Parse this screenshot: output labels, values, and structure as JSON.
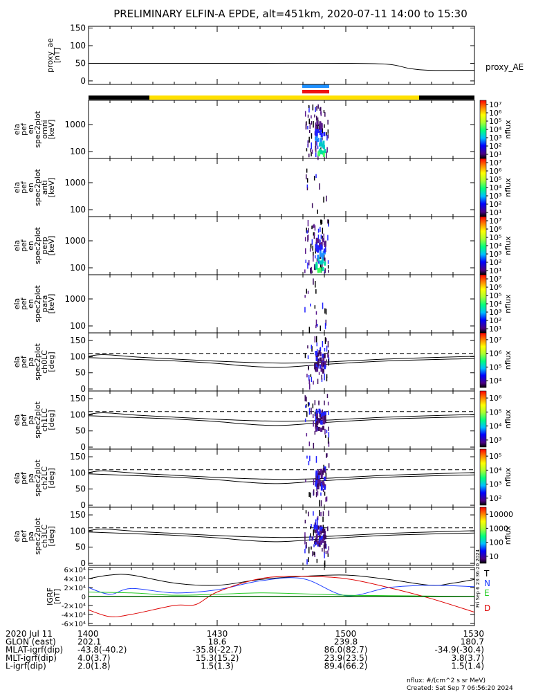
{
  "title": "PRELIMINARY ELFIN-A EPDE, alt=451km, 2020-07-11 14:00 to 15:30",
  "chart_data": [
    {
      "type": "line",
      "ylabel": [
        "proxy_ae",
        "[nT]"
      ],
      "yticks": [
        "0",
        "50",
        "100",
        "150"
      ],
      "ylim": [
        -10,
        155
      ],
      "series": [
        {
          "name": "proxy_AE",
          "x": [
            0,
            10,
            20,
            40,
            60,
            70,
            75,
            80,
            90
          ],
          "y": [
            50,
            50,
            50,
            50,
            50,
            47,
            35,
            30,
            30
          ]
        }
      ]
    },
    {
      "type": "heatmap",
      "ylabel": [
        "ela",
        "pef",
        "en",
        "spec2plot",
        "omni",
        "[keV]"
      ],
      "yticks": [
        "100",
        "1000"
      ],
      "colorbar": {
        "label": "nflux",
        "ticks": [
          "10¹",
          "10²",
          "10³",
          "10⁴",
          "10⁵",
          "10⁶",
          "10⁷"
        ]
      }
    },
    {
      "type": "heatmap",
      "ylabel": [
        "ela",
        "pef",
        "en",
        "spec2plot",
        "anti",
        "[keV]"
      ],
      "yticks": [
        "100",
        "1000"
      ],
      "colorbar": {
        "label": "nflux",
        "ticks": [
          "10¹",
          "10²",
          "10³",
          "10⁴",
          "10⁵",
          "10⁶",
          "10⁷"
        ]
      }
    },
    {
      "type": "heatmap",
      "ylabel": [
        "ela",
        "pef",
        "en",
        "spec2plot",
        "perp",
        "[keV]"
      ],
      "yticks": [
        "100",
        "1000"
      ],
      "colorbar": {
        "label": "nflux",
        "ticks": [
          "10¹",
          "10²",
          "10³",
          "10⁴",
          "10⁵",
          "10⁶",
          "10⁷"
        ]
      }
    },
    {
      "type": "heatmap",
      "ylabel": [
        "ela",
        "pef",
        "en",
        "spec2plot",
        "para",
        "[keV]"
      ],
      "yticks": [
        "100",
        "1000"
      ],
      "colorbar": {
        "label": "nflux",
        "ticks": [
          "10¹",
          "10²",
          "10³",
          "10⁴",
          "10⁵",
          "10⁶",
          "10⁷"
        ]
      }
    },
    {
      "type": "heatmap",
      "ylabel": [
        "ela",
        "pef",
        "pa",
        "spec2plot",
        "ch0LC",
        "[deg]"
      ],
      "yticks": [
        "0",
        "50",
        "100",
        "150"
      ],
      "colorbar": {
        "label": "nflux",
        "ticks": [
          "10⁴",
          "10⁵",
          "10⁶",
          "10⁷"
        ]
      }
    },
    {
      "type": "heatmap",
      "ylabel": [
        "ela",
        "pef",
        "pa",
        "spec2plot",
        "ch1LC",
        "[deg]"
      ],
      "yticks": [
        "0",
        "50",
        "100",
        "150"
      ],
      "colorbar": {
        "label": "nflux",
        "ticks": [
          "10³",
          "10⁴",
          "10⁵",
          "10⁶"
        ]
      }
    },
    {
      "type": "heatmap",
      "ylabel": [
        "ela",
        "pef",
        "pa",
        "spec2plot",
        "ch2LC",
        "[deg]"
      ],
      "yticks": [
        "0",
        "50",
        "100",
        "150"
      ],
      "colorbar": {
        "label": "nflux",
        "ticks": [
          "10²",
          "10³",
          "10⁴",
          "10⁵"
        ]
      }
    },
    {
      "type": "heatmap",
      "ylabel": [
        "ela",
        "pef",
        "pa",
        "spec2plot",
        "ch3LC",
        "[deg]"
      ],
      "yticks": [
        "0",
        "50",
        "100",
        "150"
      ],
      "colorbar": {
        "label": "nflux",
        "ticks": [
          "10",
          "100",
          "1000",
          "10000"
        ]
      }
    },
    {
      "type": "line",
      "ylabel": [
        "IGRF",
        "[nT]"
      ],
      "yticks": [
        "-6×10⁴",
        "-4×10⁴",
        "-2×10⁴",
        "0",
        "2×10⁴",
        "4×10⁴",
        "6×10⁴"
      ],
      "ylim": [
        -65000,
        65000
      ],
      "series": [
        {
          "name": "T",
          "color": "#000000",
          "x": [
            0,
            5,
            10,
            20,
            30,
            40,
            50,
            60,
            70,
            80,
            85,
            90
          ],
          "y": [
            40000,
            48000,
            48000,
            30000,
            25000,
            38000,
            45000,
            48000,
            38000,
            25000,
            30000,
            38000
          ]
        },
        {
          "name": "N",
          "color": "#1f3fff",
          "x": [
            0,
            5,
            10,
            20,
            30,
            40,
            50,
            60,
            70,
            80,
            90
          ],
          "y": [
            20000,
            5000,
            18000,
            8000,
            15000,
            35000,
            40000,
            2000,
            20000,
            25000,
            22000
          ]
        },
        {
          "name": "E",
          "color": "#22cc22",
          "x": [
            0,
            10,
            20,
            30,
            40,
            50,
            60,
            70,
            80,
            90
          ],
          "y": [
            10000,
            8000,
            3000,
            5000,
            8000,
            6000,
            3000,
            2000,
            1000,
            0
          ]
        },
        {
          "name": "D",
          "color": "#dd0000",
          "x": [
            0,
            5,
            10,
            20,
            25,
            30,
            40,
            50,
            60,
            70,
            80,
            90
          ],
          "y": [
            -30000,
            -45000,
            -40000,
            -20000,
            -18000,
            10000,
            40000,
            45000,
            40000,
            20000,
            -5000,
            -35000
          ]
        }
      ]
    }
  ],
  "xaxis": {
    "rows": [
      {
        "label": "2020 Jul 11",
        "values": [
          "1400",
          "1430",
          "1500",
          "1530"
        ]
      },
      {
        "label": "GLON (east)",
        "values": [
          "202.1",
          "18.6",
          "239.8",
          "180.7"
        ]
      },
      {
        "label": "MLAT-igrf(dip)",
        "values": [
          "-43.8(-40.2)",
          "-35.8(-22.7)",
          "86.0(82.7)",
          "-34.9(-30.4)"
        ]
      },
      {
        "label": "MLT-igrf(dip)",
        "values": [
          "4.0(3.7)",
          "15.3(15.2)",
          "23.9(23.5)",
          "3.8(3.7)"
        ]
      },
      {
        "label": "L-igrf(dip)",
        "values": [
          "2.0(1.8)",
          "1.5(1.3)",
          "89.4(66.2)",
          "1.5(1.4)"
        ]
      }
    ]
  },
  "legend": {
    "proxy_ae": "proxy_AE",
    "igrf": [
      "T",
      "N",
      "E",
      "D"
    ]
  },
  "side_stamp": "Fri Sep 6 23:36:20 2024",
  "footer": {
    "units": "nflux: #/(cm^2 s sr MeV)",
    "created": "Created: Sat Sep  7 06:56:20 2024"
  },
  "colors": {
    "sunlit": "#ffe000",
    "shadow": "#000000",
    "science_blue": "#1e90ff",
    "science_red": "#ee1111"
  }
}
